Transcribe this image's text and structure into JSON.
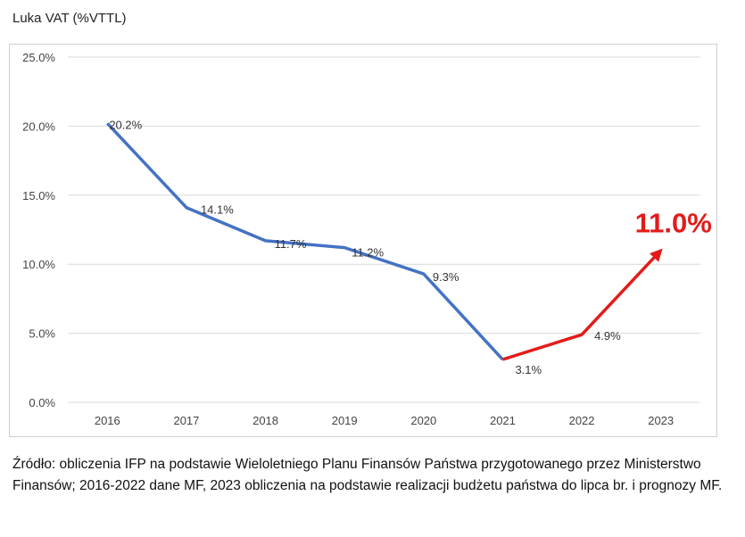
{
  "header": {
    "title": "Luka VAT (%VTTL)"
  },
  "chart_data": {
    "type": "line",
    "title": "Luka VAT (%VTTL)",
    "categories": [
      "2016",
      "2017",
      "2018",
      "2019",
      "2020",
      "2021",
      "2022",
      "2023"
    ],
    "y_ticks": [
      "0.0%",
      "5.0%",
      "10.0%",
      "15.0%",
      "20.0%",
      "25.0%"
    ],
    "ylim": [
      0,
      25
    ],
    "grid": true,
    "series": [
      {
        "values": [
          20.2,
          14.1,
          11.7,
          11.2,
          9.3,
          3.1,
          null,
          null
        ],
        "labels": [
          "20.2%",
          "14.1%",
          "11.7%",
          "11.2%",
          "9.3%",
          "3.1%",
          "",
          ""
        ],
        "color": "#4472C4"
      },
      {
        "values": [
          null,
          null,
          null,
          null,
          null,
          3.1,
          4.9,
          11.0
        ],
        "labels": [
          "",
          "",
          "",
          "",
          "",
          "",
          "4.9%",
          "11.0%"
        ],
        "color": "#E31B1B"
      }
    ]
  },
  "footer": {
    "source": "Źródło: obliczenia IFP na podstawie Wieloletniego Planu Finansów Państwa przygotowanego przez Ministerstwo Finansów; 2016-2022 dane MF, 2023 obliczenia na podstawie realizacji budżetu państwa do lipca br. i prognozy MF."
  }
}
